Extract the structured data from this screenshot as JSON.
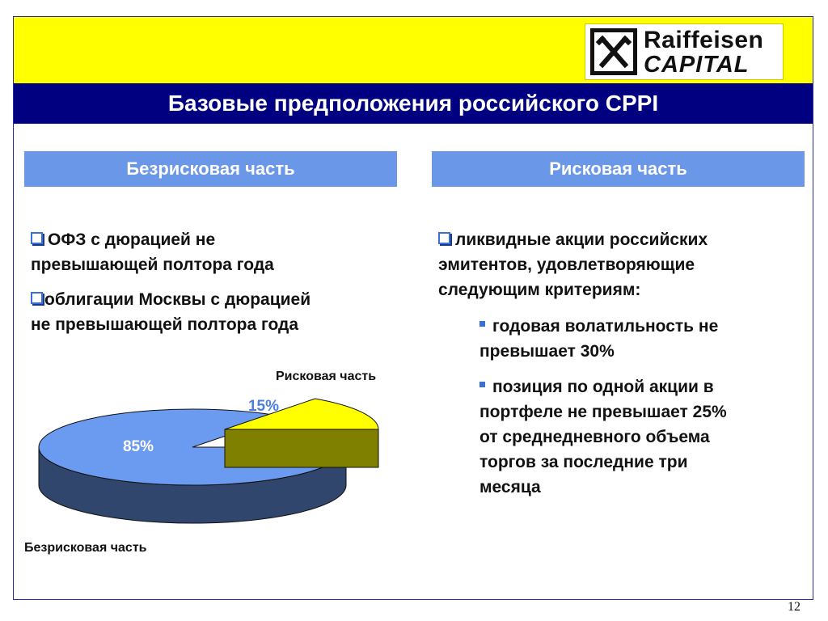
{
  "logo": {
    "line1": "Raiffeisen",
    "line2": "CAPITAL"
  },
  "title": "Базовые предположения российского CPPI",
  "left_header": "Безрисковая часть",
  "right_header": "Рисковая часть",
  "left_bullets": [
    {
      "line1": "ОФЗ с дюрацией не",
      "line2": "превышающей полтора года"
    },
    {
      "line1": "облигации Москвы с дюрацией",
      "line2": "не превышающей полтора года"
    }
  ],
  "right_bullet": {
    "line1": "ликвидные акции российских",
    "line2": "эмитентов, удовлетворяющие",
    "line3": "следующим критериям:"
  },
  "sub_bullets": [
    {
      "lines": [
        "годовая волатильность не",
        "превышает 30%"
      ]
    },
    {
      "lines": [
        "позиция по одной акции в",
        "портфеле не превышает 25%",
        "от среднедневного объема",
        "торгов за последние три",
        "месяца"
      ]
    }
  ],
  "chart_data": {
    "type": "pie",
    "categories": [
      "Рисковая часть",
      "Безрисковая часть"
    ],
    "values": [
      15,
      85
    ],
    "value_labels": [
      "15%",
      "85%"
    ],
    "colors": [
      "#ffff00",
      "#6b9bf0"
    ]
  },
  "page_number": "12"
}
